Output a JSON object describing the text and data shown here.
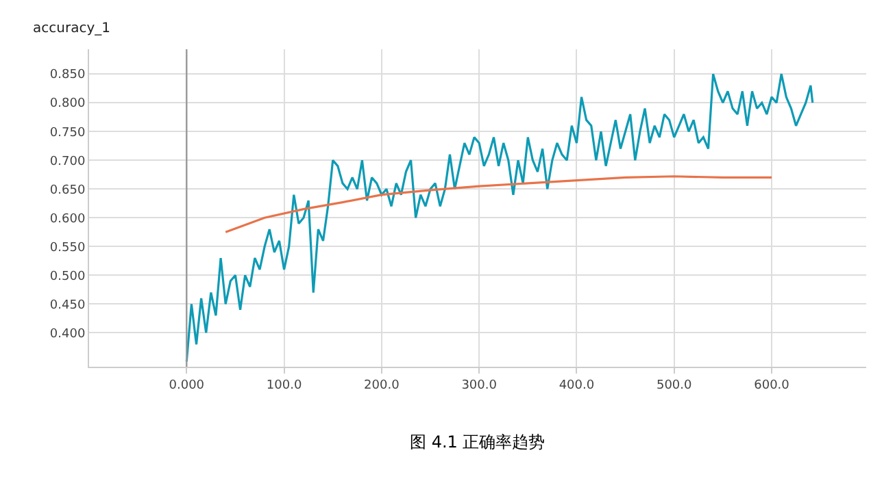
{
  "chart_data": {
    "type": "line",
    "title": "accuracy_1",
    "annotations": [
      "图 4.1 正确率趋势"
    ],
    "series": [
      {
        "color": "#0e9bb5",
        "x": [
          0,
          5,
          10,
          15,
          20,
          25,
          30,
          35,
          40,
          45,
          50,
          55,
          60,
          65,
          70,
          75,
          80,
          85,
          90,
          95,
          100,
          105,
          110,
          115,
          120,
          125,
          130,
          135,
          140,
          145,
          150,
          155,
          160,
          165,
          170,
          175,
          180,
          185,
          190,
          195,
          200,
          205,
          210,
          215,
          220,
          225,
          230,
          235,
          240,
          245,
          250,
          255,
          260,
          265,
          270,
          275,
          280,
          285,
          290,
          295,
          300,
          305,
          310,
          315,
          320,
          325,
          330,
          335,
          340,
          345,
          350,
          355,
          360,
          365,
          370,
          375,
          380,
          385,
          390,
          395,
          400,
          405,
          410,
          415,
          420,
          425,
          430,
          435,
          440,
          445,
          450,
          455,
          460,
          465,
          470,
          475,
          480,
          485,
          490,
          495,
          500,
          505,
          510,
          515,
          520,
          525,
          530,
          535,
          540,
          545,
          550,
          555,
          560,
          565,
          570,
          575,
          580,
          585,
          590,
          595,
          600,
          605,
          610,
          615,
          620,
          625,
          630,
          635,
          640,
          642
        ],
        "values": [
          0.35,
          0.45,
          0.38,
          0.46,
          0.4,
          0.47,
          0.43,
          0.53,
          0.45,
          0.49,
          0.5,
          0.44,
          0.5,
          0.48,
          0.53,
          0.51,
          0.55,
          0.58,
          0.54,
          0.56,
          0.51,
          0.55,
          0.64,
          0.59,
          0.6,
          0.63,
          0.47,
          0.58,
          0.56,
          0.62,
          0.7,
          0.69,
          0.66,
          0.65,
          0.67,
          0.65,
          0.7,
          0.63,
          0.67,
          0.66,
          0.64,
          0.65,
          0.62,
          0.66,
          0.64,
          0.68,
          0.7,
          0.6,
          0.64,
          0.62,
          0.65,
          0.66,
          0.62,
          0.65,
          0.71,
          0.65,
          0.69,
          0.73,
          0.71,
          0.74,
          0.73,
          0.69,
          0.71,
          0.74,
          0.69,
          0.73,
          0.7,
          0.64,
          0.7,
          0.66,
          0.74,
          0.7,
          0.68,
          0.72,
          0.65,
          0.7,
          0.73,
          0.71,
          0.7,
          0.76,
          0.73,
          0.81,
          0.77,
          0.76,
          0.7,
          0.75,
          0.69,
          0.73,
          0.77,
          0.72,
          0.75,
          0.78,
          0.7,
          0.75,
          0.79,
          0.73,
          0.76,
          0.74,
          0.78,
          0.77,
          0.74,
          0.76,
          0.78,
          0.75,
          0.77,
          0.73,
          0.74,
          0.72,
          0.85,
          0.82,
          0.8,
          0.82,
          0.79,
          0.78,
          0.82,
          0.76,
          0.82,
          0.79,
          0.8,
          0.78,
          0.81,
          0.8,
          0.85,
          0.81,
          0.79,
          0.76,
          0.78,
          0.8,
          0.83,
          0.8
        ]
      },
      {
        "color": "#e8734a",
        "x": [
          40,
          80,
          120,
          160,
          200,
          250,
          300,
          350,
          400,
          450,
          500,
          550,
          600
        ],
        "values": [
          0.575,
          0.6,
          0.615,
          0.627,
          0.64,
          0.648,
          0.655,
          0.66,
          0.665,
          0.67,
          0.672,
          0.67,
          0.67
        ]
      }
    ],
    "xlim": [
      -100,
      697
    ],
    "xticks": [
      {
        "value": 0,
        "label": "0.000"
      },
      {
        "value": 100,
        "label": "100.0"
      },
      {
        "value": 200,
        "label": "200.0"
      },
      {
        "value": 300,
        "label": "300.0"
      },
      {
        "value": 400,
        "label": "400.0"
      },
      {
        "value": 500,
        "label": "500.0"
      },
      {
        "value": 600,
        "label": "600.0"
      }
    ],
    "ylim": [
      0.341,
      0.893
    ],
    "yticks": [
      {
        "value": 0.4,
        "label": "0.400"
      },
      {
        "value": 0.45,
        "label": "0.450"
      },
      {
        "value": 0.5,
        "label": "0.500"
      },
      {
        "value": 0.55,
        "label": "0.550"
      },
      {
        "value": 0.6,
        "label": "0.600"
      },
      {
        "value": 0.65,
        "label": "0.650"
      },
      {
        "value": 0.7,
        "label": "0.700"
      },
      {
        "value": 0.75,
        "label": "0.750"
      },
      {
        "value": 0.8,
        "label": "0.800"
      },
      {
        "value": 0.85,
        "label": "0.850"
      }
    ],
    "ref_lines": [
      {
        "axis": "x",
        "value": 0,
        "color": "#999999"
      }
    ],
    "grid": true
  }
}
